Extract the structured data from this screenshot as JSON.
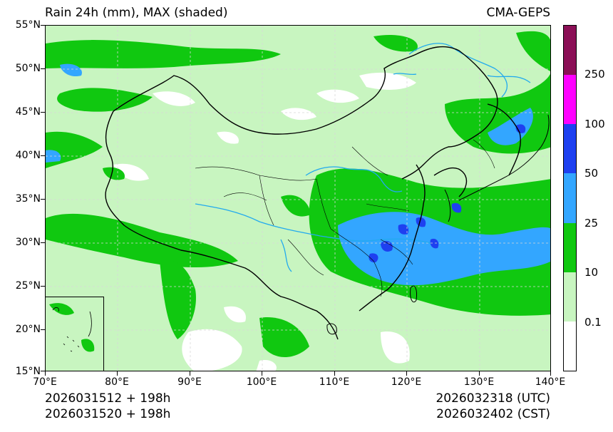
{
  "header": {
    "title_left": "Rain 24h (mm), MAX (shaded)",
    "title_right": "CMA-GEPS"
  },
  "axes": {
    "lat_labels": [
      "55°N",
      "50°N",
      "45°N",
      "40°N",
      "35°N",
      "30°N",
      "25°N",
      "20°N",
      "15°N"
    ],
    "lon_labels": [
      "70°E",
      "80°E",
      "90°E",
      "100°E",
      "110°E",
      "120°E",
      "130°E",
      "140°E"
    ]
  },
  "footer": {
    "init_utc": "2026031512 + 198h",
    "init_cst": "2026031520 + 198h",
    "valid_utc": "2026032318 (UTC)",
    "valid_cst": "2026032402 (CST)"
  },
  "colorbar": {
    "labels": [
      "250",
      "100",
      "50",
      "25",
      "10",
      "0.1"
    ],
    "colors_top_to_bottom": [
      "#8b0f56",
      "#ff00ff",
      "#1e40f0",
      "#33a6ff",
      "#10c810",
      "#c8f5c0",
      "#ffffff"
    ]
  },
  "map_colors": {
    "light_green": "#c8f5c0",
    "green": "#10c810",
    "light_blue": "#33a6ff",
    "blue": "#1e40f0",
    "river": "#22aaee",
    "border": "#000000"
  }
}
